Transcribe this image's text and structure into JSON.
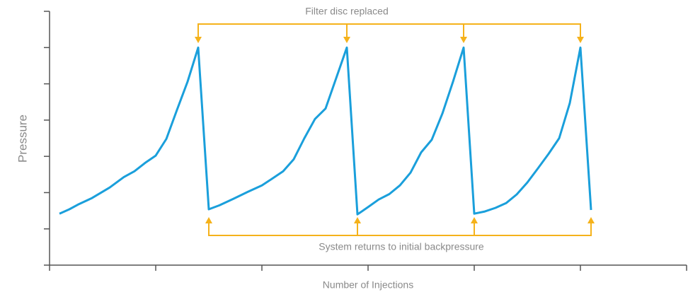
{
  "chart_data": {
    "type": "line",
    "x_label": "Number of Injections",
    "y_label": "Pressure",
    "annotations": [
      "Filter disc replaced",
      "System returns to initial backpressure"
    ],
    "x": [
      0.093,
      0.187,
      0.267,
      0.4,
      0.567,
      0.7,
      0.8,
      0.9,
      1,
      1.1,
      1.2,
      1.3,
      1.4,
      1.5,
      1.6,
      1.733,
      1.867,
      2,
      2.1,
      2.2,
      2.3,
      2.4,
      2.5,
      2.6,
      2.7,
      2.8,
      2.9,
      3,
      3.1,
      3.2,
      3.3,
      3.4,
      3.5,
      3.6,
      3.7,
      3.8,
      3.9,
      4,
      4.1,
      4.2,
      4.3,
      4.4,
      4.5,
      4.6,
      4.7,
      4.8,
      4.9,
      5,
      5.1
    ],
    "series": [
      {
        "color": "#1a9fdb",
        "values": [
          1.42,
          1.54,
          1.67,
          1.85,
          2.14,
          2.43,
          2.59,
          2.82,
          3.02,
          3.48,
          4.28,
          5.06,
          6.0,
          1.54,
          1.65,
          1.83,
          2.02,
          2.2,
          2.39,
          2.59,
          2.92,
          3.5,
          4.03,
          4.32,
          5.16,
          6.0,
          1.4,
          1.6,
          1.81,
          1.96,
          2.2,
          2.55,
          3.11,
          3.46,
          4.18,
          5.06,
          6.0,
          1.42,
          1.48,
          1.58,
          1.71,
          1.95,
          2.28,
          2.67,
          3.07,
          3.5,
          4.47,
          6.0,
          1.52
        ]
      }
    ],
    "xlim": [
      0,
      6
    ],
    "xticks": [
      0,
      1,
      2,
      3,
      4,
      5,
      6
    ],
    "ylim": [
      0,
      7
    ],
    "yticks": [
      0,
      1,
      2,
      3,
      4,
      5,
      6,
      7
    ],
    "annotation_color": "#f5b21b"
  }
}
